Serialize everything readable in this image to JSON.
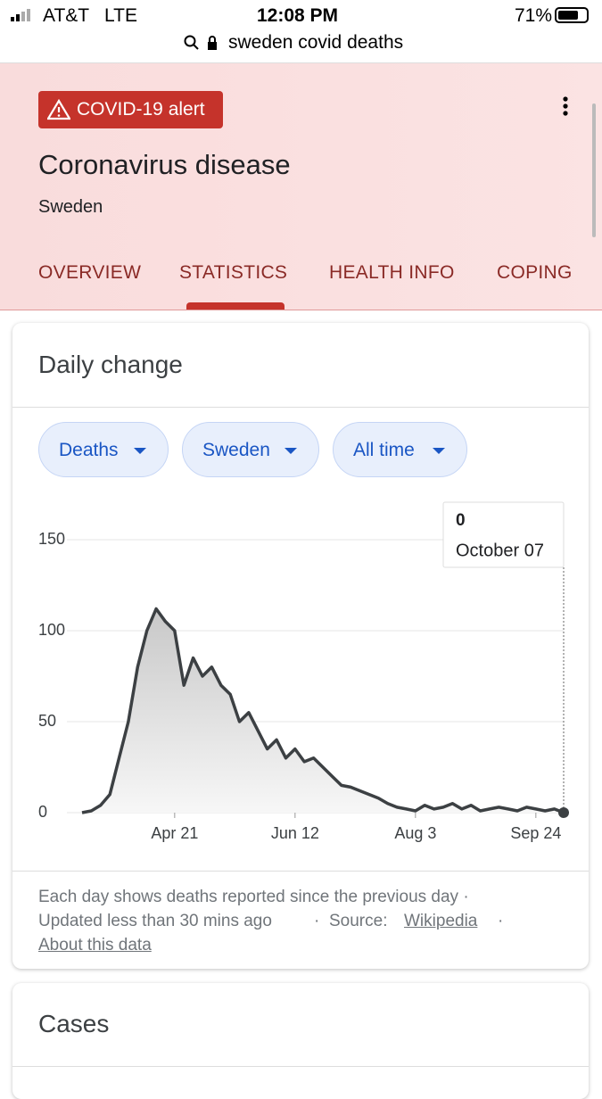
{
  "status_bar": {
    "carrier": "AT&T",
    "network": "LTE",
    "time": "12:08 PM",
    "battery": "71%"
  },
  "address_bar": {
    "query": "sweden covid deaths"
  },
  "header": {
    "alert": "COVID-19 alert",
    "title": "Coronavirus disease",
    "subtitle": "Sweden",
    "tabs": [
      "OVERVIEW",
      "STATISTICS",
      "HEALTH INFO",
      "COPING"
    ]
  },
  "card": {
    "title": "Daily change",
    "filters": [
      "Deaths",
      "Sweden",
      "All time"
    ],
    "footer": {
      "note": "Each day shows deaths reported since the previous day ·",
      "updated": "Updated less than 30 mins ago",
      "source_label": "Source:",
      "source_link": "Wikipedia",
      "about": "About this data"
    }
  },
  "chart_data": {
    "type": "line",
    "color": "#3c4043",
    "x": [
      "Mar 12",
      "Mar 16",
      "Mar 20",
      "Mar 24",
      "Mar 28",
      "Apr 1",
      "Apr 5",
      "Apr 9",
      "Apr 13",
      "Apr 17",
      "Apr 21",
      "Apr 25",
      "Apr 29",
      "May 3",
      "May 7",
      "May 11",
      "May 15",
      "May 19",
      "May 23",
      "May 27",
      "May 31",
      "Jun 4",
      "Jun 8",
      "Jun 12",
      "Jun 16",
      "Jun 20",
      "Jun 24",
      "Jun 28",
      "Jul 2",
      "Jul 6",
      "Jul 10",
      "Jul 14",
      "Jul 18",
      "Jul 22",
      "Jul 26",
      "Jul 30",
      "Aug 3",
      "Aug 7",
      "Aug 11",
      "Aug 15",
      "Aug 19",
      "Aug 23",
      "Aug 27",
      "Aug 31",
      "Sep 4",
      "Sep 8",
      "Sep 12",
      "Sep 16",
      "Sep 20",
      "Sep 24",
      "Sep 28",
      "Oct 2",
      "Oct 7"
    ],
    "values": [
      0,
      1,
      4,
      10,
      30,
      50,
      80,
      100,
      112,
      105,
      100,
      70,
      85,
      75,
      80,
      70,
      65,
      50,
      55,
      45,
      35,
      40,
      30,
      35,
      28,
      30,
      25,
      20,
      15,
      14,
      12,
      10,
      8,
      5,
      3,
      2,
      1,
      4,
      2,
      3,
      5,
      2,
      4,
      1,
      2,
      3,
      2,
      1,
      3,
      2,
      1,
      2,
      0
    ],
    "ylim": [
      0,
      150
    ],
    "yticks": [
      0,
      50,
      100,
      150
    ],
    "xticks": [
      "Apr 21",
      "Jun 12",
      "Aug 3",
      "Sep 24"
    ],
    "grid": true,
    "tooltip": {
      "value": 0,
      "date": "October 07"
    }
  }
}
